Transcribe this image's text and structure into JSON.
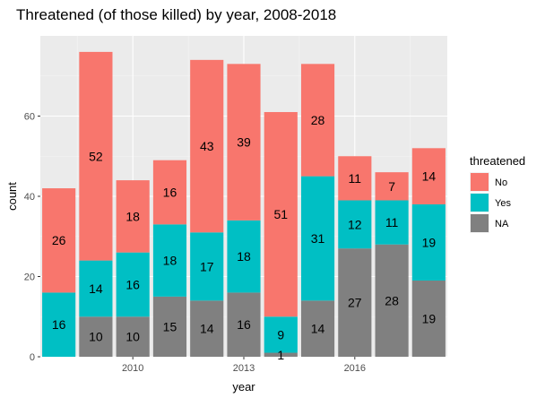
{
  "chart_data": {
    "type": "bar",
    "stacked": true,
    "title": "Threatened (of those killed) by year, 2008-2018",
    "xlabel": "year",
    "ylabel": "count",
    "x": [
      2008,
      2009,
      2010,
      2011,
      2012,
      2013,
      2014,
      2015,
      2016,
      2017,
      2018
    ],
    "xlim": [
      2007.5,
      2018.5
    ],
    "ylim": [
      0,
      80
    ],
    "xticks": [
      2010,
      2013,
      2016
    ],
    "yticks": [
      0,
      20,
      40,
      60
    ],
    "grid": true,
    "legend": {
      "title": "threatened",
      "position": "right"
    },
    "series": [
      {
        "name": "No",
        "color": "#F8766D",
        "values": [
          26,
          52,
          18,
          16,
          43,
          39,
          51,
          28,
          11,
          7,
          14
        ]
      },
      {
        "name": "Yes",
        "color": "#00BFC4",
        "values": [
          16,
          14,
          16,
          18,
          17,
          18,
          9,
          31,
          12,
          11,
          19
        ]
      },
      {
        "name": "NA",
        "color": "#808080",
        "values": [
          0,
          10,
          10,
          15,
          14,
          16,
          1,
          14,
          27,
          28,
          19
        ]
      }
    ]
  }
}
